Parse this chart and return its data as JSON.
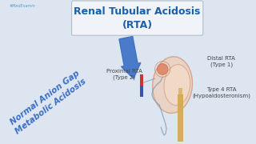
{
  "bg_color": "#dde6f0",
  "title_text": "Renal Tubular Acidosis\n(RTA)",
  "title_box_facecolor": "#f0f4f8",
  "title_box_edgecolor": "#b0bec8",
  "title_text_color": "#1a5fa8",
  "title_fontsize": 9,
  "arrow_color": "#3a6fc4",
  "diag_line1": "Normal Anion Gap",
  "diag_line2": "Metabolic Acidosis",
  "diag_text_color": "#3a6fc4",
  "diag_fontsize": 7.5,
  "diag_rotation": 37,
  "label_proximal": "Proximal RTA\n(Type 2)",
  "label_distal": "Distal RTA\n(Type 1)",
  "label_type4": "Type 4 RTA\n(Hypoaldosteronism)",
  "label_fontsize": 5.0,
  "label_color": "#444444",
  "hashtag_text": "#MedExamin",
  "hashtag_color": "#5599cc",
  "hashtag_fontsize": 3.5,
  "kidney_edge": "#c97a5a",
  "kidney_face": "#f2c4a0",
  "tubule_color": "#7799bb",
  "duct_color": "#d4a850",
  "rect_red": "#cc3333",
  "rect_blue": "#3355aa",
  "glom_face": "#e08060"
}
